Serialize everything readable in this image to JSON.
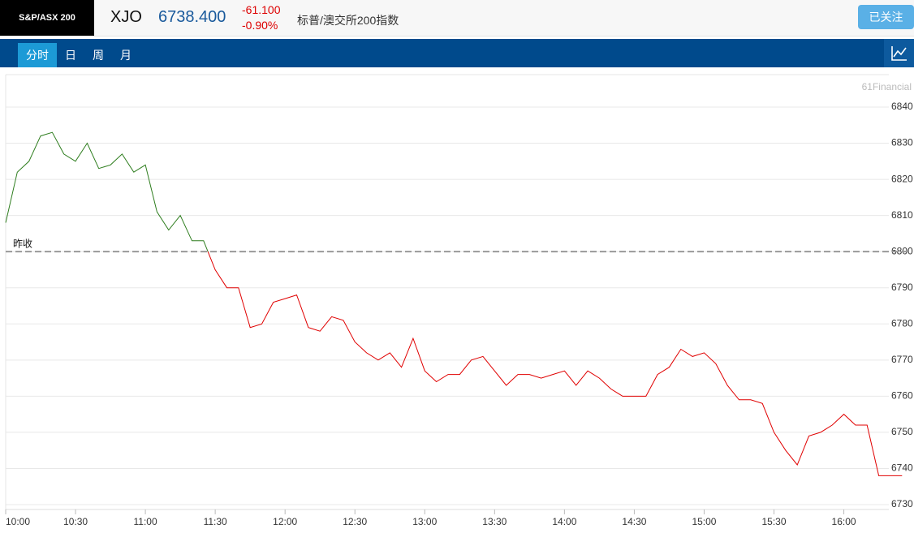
{
  "header": {
    "index_name": "S&P/ASX 200",
    "symbol": "XJO",
    "price": "6738.400",
    "change": "-61.100",
    "change_pct": "-0.90%",
    "description": "标普/澳交所200指数",
    "follow_button": "已关注"
  },
  "tabs": [
    "分时",
    "日",
    "周",
    "月"
  ],
  "watermark": "61Financial",
  "chart_data": {
    "type": "line",
    "prev_close": 6800,
    "prev_close_label": "昨收",
    "color_above": "#2e7d1e",
    "color_below": "#e00000",
    "color_prev_close": "#999999",
    "x": [
      "10:00",
      "10:05",
      "10:10",
      "10:15",
      "10:20",
      "10:25",
      "10:30",
      "10:35",
      "10:40",
      "10:45",
      "10:50",
      "10:55",
      "11:00",
      "11:05",
      "11:10",
      "11:15",
      "11:20",
      "11:25",
      "11:30",
      "11:35",
      "11:40",
      "11:45",
      "11:50",
      "11:55",
      "12:00",
      "12:05",
      "12:10",
      "12:15",
      "12:20",
      "12:25",
      "12:30",
      "12:35",
      "12:40",
      "12:45",
      "12:50",
      "12:55",
      "13:00",
      "13:05",
      "13:10",
      "13:15",
      "13:20",
      "13:25",
      "13:30",
      "13:35",
      "13:40",
      "13:45",
      "13:50",
      "13:55",
      "14:00",
      "14:05",
      "14:10",
      "14:15",
      "14:20",
      "14:25",
      "14:30",
      "14:35",
      "14:40",
      "14:45",
      "14:50",
      "14:55",
      "15:00",
      "15:05",
      "15:10",
      "15:15",
      "15:20",
      "15:25",
      "15:30",
      "15:35",
      "15:40",
      "15:45",
      "15:50",
      "15:55",
      "16:00",
      "16:05",
      "16:10",
      "16:15",
      "16:20",
      "16:25"
    ],
    "values": [
      6808,
      6822,
      6825,
      6832,
      6833,
      6827,
      6825,
      6830,
      6823,
      6824,
      6827,
      6822,
      6824,
      6811,
      6806,
      6810,
      6803,
      6803,
      6795,
      6790,
      6790,
      6779,
      6780,
      6786,
      6787,
      6788,
      6779,
      6778,
      6782,
      6781,
      6775,
      6772,
      6770,
      6772,
      6768,
      6776,
      6767,
      6764,
      6766,
      6766,
      6770,
      6771,
      6767,
      6763,
      6766,
      6766,
      6765,
      6766,
      6767,
      6763,
      6767,
      6765,
      6762,
      6760,
      6760,
      6760,
      6766,
      6768,
      6773,
      6771,
      6772,
      6769,
      6763,
      6759,
      6759,
      6758,
      6750,
      6745,
      6741,
      6749,
      6750,
      6752,
      6755,
      6752,
      6752,
      6738,
      6738,
      6738
    ],
    "xlim": [
      "10:00",
      "16:27"
    ],
    "xticks": [
      "10:00",
      "10:30",
      "11:00",
      "11:30",
      "12:00",
      "12:30",
      "13:00",
      "13:30",
      "14:00",
      "14:30",
      "15:00",
      "15:30",
      "16:00"
    ],
    "ylim": [
      6730,
      6840
    ],
    "yticks": [
      6730,
      6740,
      6750,
      6760,
      6770,
      6780,
      6790,
      6800,
      6810,
      6820,
      6830,
      6840
    ],
    "grid": true
  }
}
